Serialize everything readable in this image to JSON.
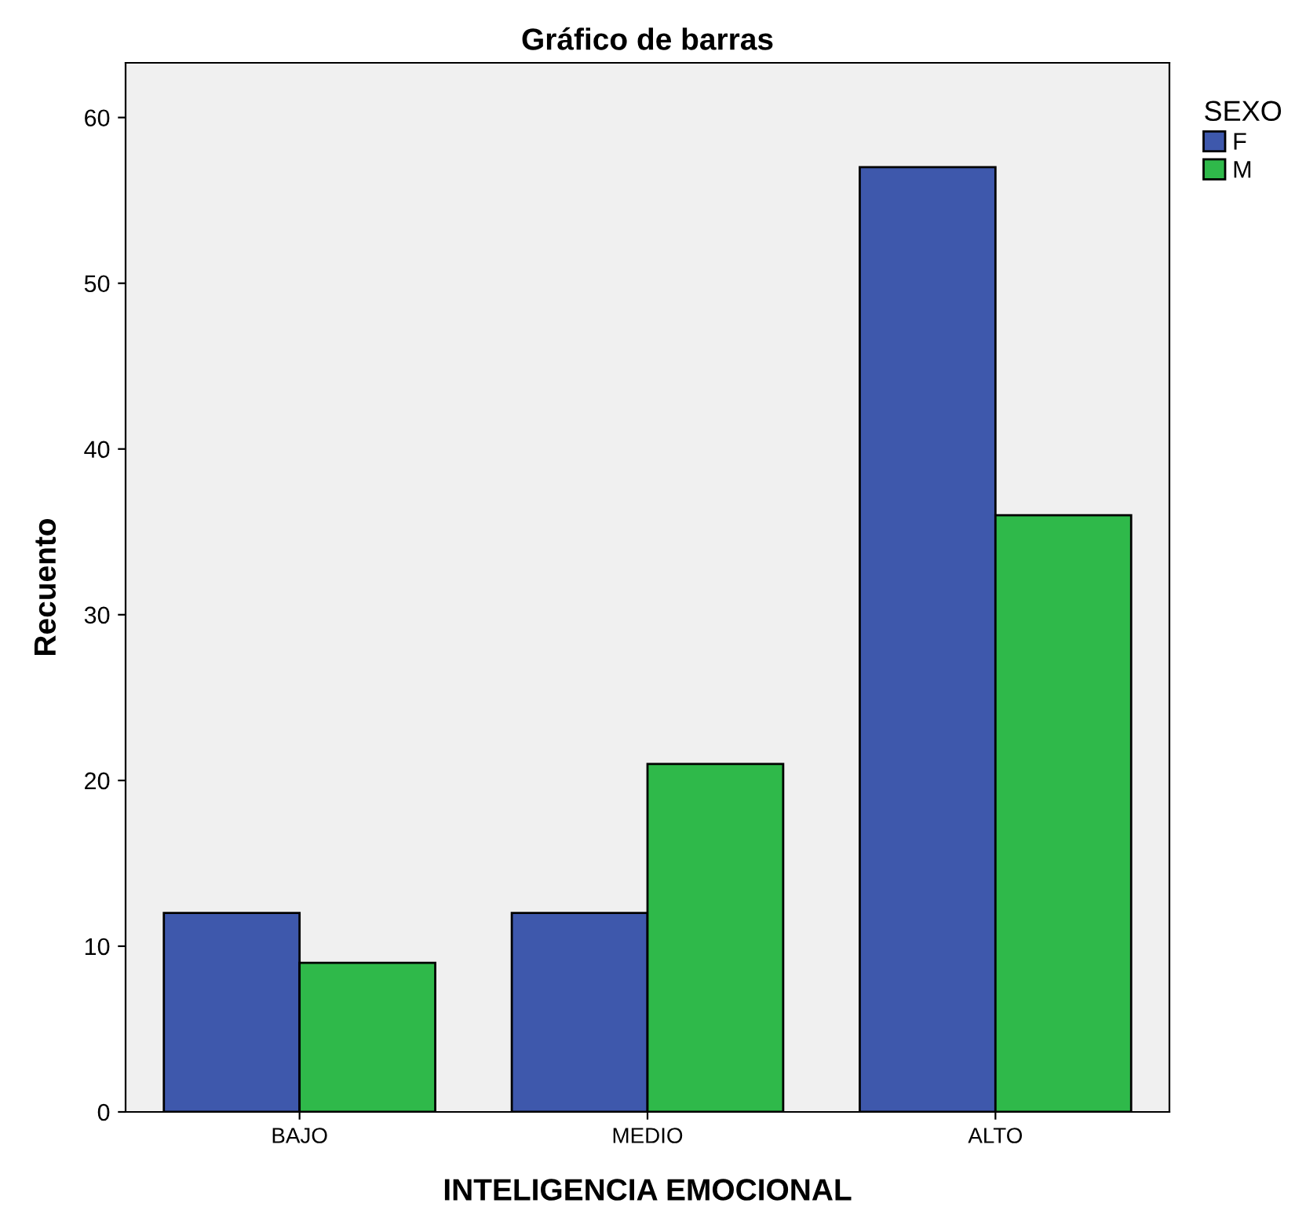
{
  "chart_data": {
    "type": "bar",
    "title": "Gráfico de barras",
    "xlabel": "INTELIGENCIA EMOCIONAL",
    "ylabel": "Recuento",
    "legend_title": "SEXO",
    "categories": [
      "BAJO",
      "MEDIO",
      "ALTO"
    ],
    "series": [
      {
        "name": "F",
        "color": "#3e58ac",
        "values": [
          12,
          12,
          57
        ]
      },
      {
        "name": "M",
        "color": "#2fb94a",
        "values": [
          9,
          21,
          36
        ]
      }
    ],
    "ylim": [
      0,
      63.3
    ],
    "yticks": [
      0,
      10,
      20,
      30,
      40,
      50,
      60
    ],
    "grid": false,
    "legend": "top right"
  }
}
